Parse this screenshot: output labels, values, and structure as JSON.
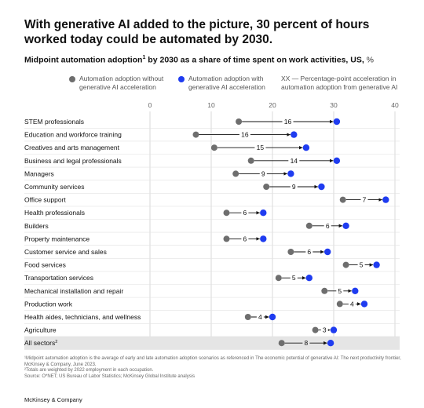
{
  "headline": "With generative AI added to the picture, 30 percent of hours worked today could be automated by 2030.",
  "subtitle": {
    "main": "Midpoint automation adoption",
    "sup": "1",
    "rest": " by 2030 as a share of time spent on work activities, US,",
    "unit": " %"
  },
  "legend": {
    "without": "Automation adoption without generative AI acceleration",
    "with": "Automation adoption with generative AI acceleration",
    "acceleration": "XX — Percentage-point acceleration in automation adoption from generative AI"
  },
  "colors": {
    "without": "#6e6e6e",
    "with": "#1f3cf0",
    "highlight_row": "#e5e5e5",
    "gridline": "#d0d0d0"
  },
  "chart_data": {
    "type": "dumbbell",
    "xlim": [
      0,
      40
    ],
    "xticks": [
      "0",
      "10",
      "20",
      "30",
      "40"
    ],
    "grid": true,
    "legend_position": "top",
    "rows": [
      {
        "label": "STEM professionals",
        "without": 14.5,
        "with": 30.5,
        "acceleration": "16"
      },
      {
        "label": "Education and workforce training",
        "without": 7.5,
        "with": 23.5,
        "acceleration": "16"
      },
      {
        "label": "Creatives and arts management",
        "without": 10.5,
        "with": 25.5,
        "acceleration": "15"
      },
      {
        "label": "Business and legal professionals",
        "without": 16.5,
        "with": 30.5,
        "acceleration": "14"
      },
      {
        "label": "Managers",
        "without": 14,
        "with": 23,
        "acceleration": "9"
      },
      {
        "label": "Community services",
        "without": 19,
        "with": 28,
        "acceleration": "9"
      },
      {
        "label": "Office support",
        "without": 31.5,
        "with": 38.5,
        "acceleration": "7"
      },
      {
        "label": "Health professionals",
        "without": 12.5,
        "with": 18.5,
        "acceleration": "6"
      },
      {
        "label": "Builders",
        "without": 26,
        "with": 32,
        "acceleration": "6"
      },
      {
        "label": "Property maintenance",
        "without": 12.5,
        "with": 18.5,
        "acceleration": "6"
      },
      {
        "label": "Customer service and sales",
        "without": 23,
        "with": 29,
        "acceleration": "6"
      },
      {
        "label": "Food services",
        "without": 32,
        "with": 37,
        "acceleration": "5"
      },
      {
        "label": "Transportation services",
        "without": 21,
        "with": 26,
        "acceleration": "5"
      },
      {
        "label": "Mechanical installation and repair",
        "without": 28.5,
        "with": 33.5,
        "acceleration": "5"
      },
      {
        "label": "Production work",
        "without": 31,
        "with": 35,
        "acceleration": "4"
      },
      {
        "label": "Health aides, technicians, and wellness",
        "without": 16,
        "with": 20,
        "acceleration": "4"
      },
      {
        "label": "Agriculture",
        "without": 27,
        "with": 30,
        "acceleration": "3"
      },
      {
        "label": "All sectors",
        "label_sup": "2",
        "without": 21.5,
        "with": 29.5,
        "acceleration": "8",
        "highlight": true
      }
    ]
  },
  "footnotes": {
    "note1": "¹Midpoint automation adoption is the average of early and late automation adoption scenarios as referenced in The economic potential of generative AI: The next productivity frontier, McKinsey & Company, June 2023.",
    "note2": "²Totals are weighted by 2022 employment in each occupation.",
    "source": "Source: O*NET; US Bureau of Labor Statistics; McKinsey Global Institute analysis"
  },
  "brand": "McKinsey & Company"
}
